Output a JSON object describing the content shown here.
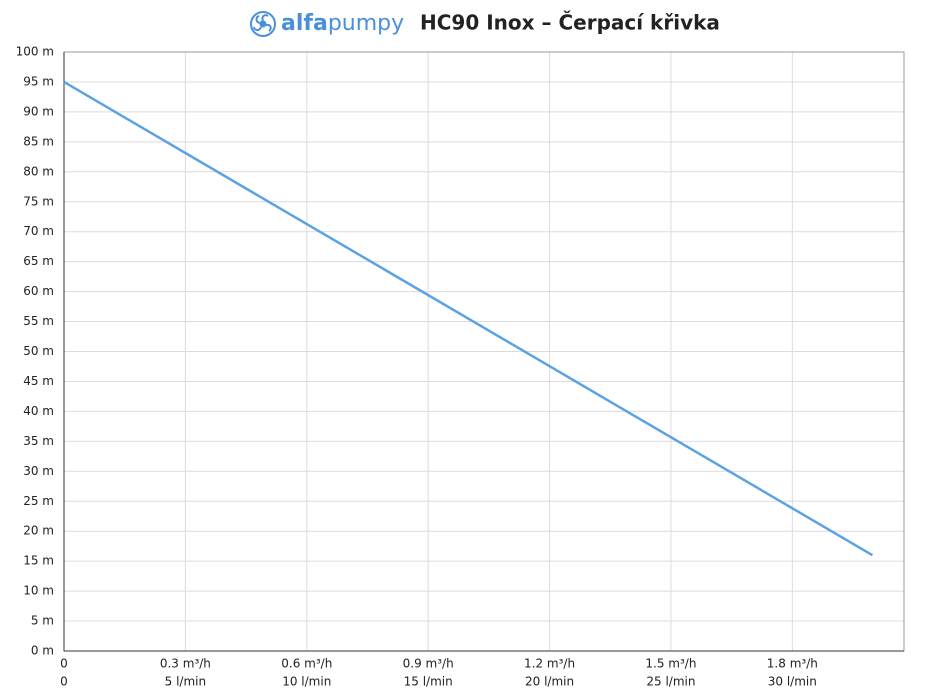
{
  "chart_data": {
    "type": "line",
    "brand": [
      "alfa",
      "pumpy"
    ],
    "title": "HC90 Inox – Čerpací křivka",
    "x": [
      0,
      33.3
    ],
    "series": [
      {
        "color": "#5ba3e3",
        "values": [
          95,
          16
        ]
      }
    ],
    "xlim": [
      0,
      34.6
    ],
    "xticks": [
      0,
      {
        "value": 5,
        "label": "5 l/min"
      },
      {
        "value": 10,
        "label": "10 l/min"
      },
      {
        "value": 15,
        "label": "15 l/min"
      },
      {
        "value": 20,
        "label": "20 l/min"
      },
      {
        "value": 25,
        "label": "25 l/min"
      },
      {
        "value": 30,
        "label": "30 l/min"
      }
    ],
    "xticks_secondary": [
      0,
      {
        "value": 5,
        "label": "0.3 m³/h"
      },
      {
        "value": 10,
        "label": "0.6 m³/h"
      },
      {
        "value": 15,
        "label": "0.9 m³/h"
      },
      {
        "value": 20,
        "label": "1.2 m³/h"
      },
      {
        "value": 25,
        "label": "1.5 m³/h"
      },
      {
        "value": 30,
        "label": "1.8 m³/h"
      }
    ],
    "ylim": [
      0,
      100
    ],
    "yticks": [
      {
        "value": 0,
        "label": "0 m"
      },
      {
        "value": 5,
        "label": "5 m"
      },
      {
        "value": 10,
        "label": "10 m"
      },
      {
        "value": 15,
        "label": "15 m"
      },
      {
        "value": 20,
        "label": "20 m"
      },
      {
        "value": 25,
        "label": "25 m"
      },
      {
        "value": 30,
        "label": "30 m"
      },
      {
        "value": 35,
        "label": "35 m"
      },
      {
        "value": 40,
        "label": "40 m"
      },
      {
        "value": 45,
        "label": "45 m"
      },
      {
        "value": 50,
        "label": "50 m"
      },
      {
        "value": 55,
        "label": "55 m"
      },
      {
        "value": 60,
        "label": "60 m"
      },
      {
        "value": 65,
        "label": "65 m"
      },
      {
        "value": 70,
        "label": "70 m"
      },
      {
        "value": 75,
        "label": "75 m"
      },
      {
        "value": 80,
        "label": "80 m"
      },
      {
        "value": 85,
        "label": "85 m"
      },
      {
        "value": 90,
        "label": "90 m"
      },
      {
        "value": 95,
        "label": "95 m"
      },
      {
        "value": 100,
        "label": "100 m"
      }
    ],
    "grid": true
  }
}
